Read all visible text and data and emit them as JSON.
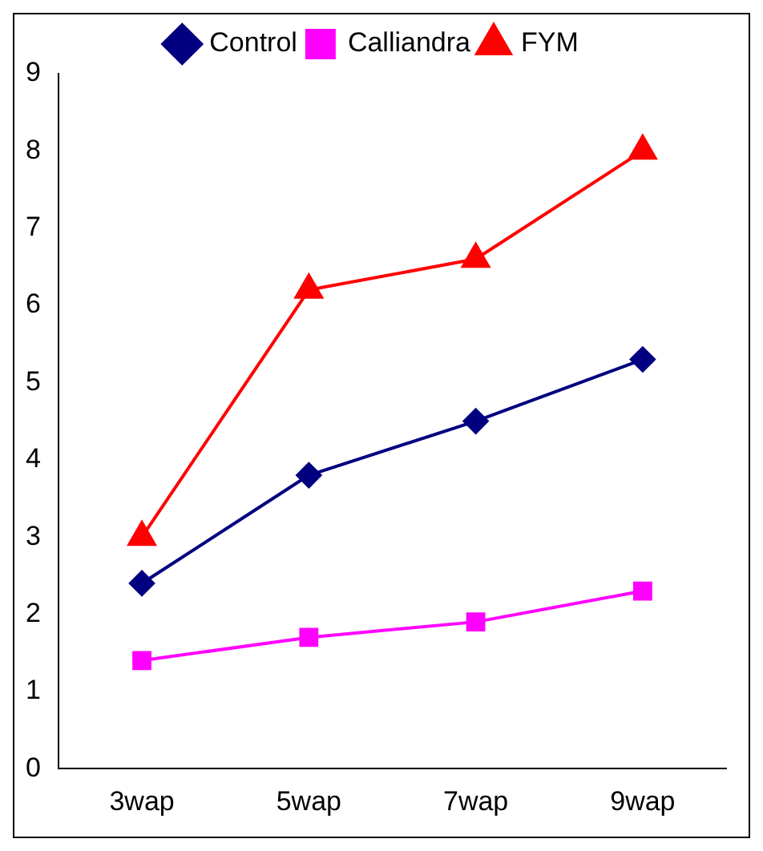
{
  "chart_data": {
    "type": "line",
    "categories": [
      "3wap",
      "5wap",
      "7wap",
      "9wap"
    ],
    "series": [
      {
        "name": "Control",
        "color": "#000080",
        "marker": "diamond",
        "values": [
          2.4,
          3.8,
          4.5,
          5.3
        ]
      },
      {
        "name": "Calliandra",
        "color": "#ff00ff",
        "marker": "square",
        "values": [
          1.4,
          1.7,
          1.9,
          2.3
        ]
      },
      {
        "name": "FYM",
        "color": "#ff0000",
        "marker": "triangle",
        "values": [
          3.0,
          6.2,
          6.6,
          8.0
        ]
      }
    ],
    "ylim": [
      0,
      9
    ],
    "yticks": [
      0,
      1,
      2,
      3,
      4,
      5,
      6,
      7,
      8,
      9
    ],
    "grid": false,
    "legend": "top",
    "line_style": "solid"
  }
}
